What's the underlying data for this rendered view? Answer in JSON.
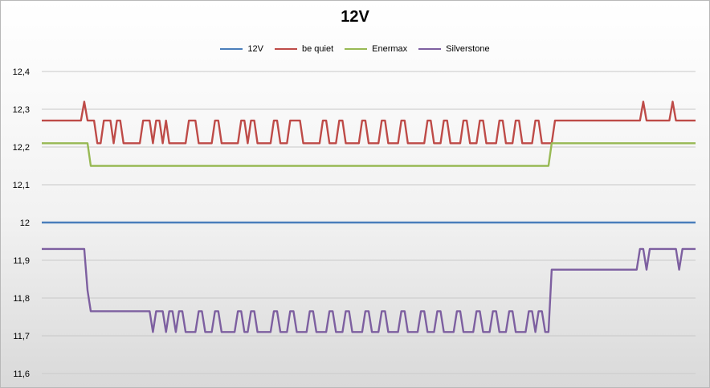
{
  "chart_data": {
    "type": "line",
    "title": "12V",
    "xlabel": "",
    "ylabel": "",
    "ylim": [
      11.6,
      12.4
    ],
    "yticks": [
      "12,4",
      "12,3",
      "12,2",
      "12,1",
      "12",
      "11,9",
      "11,8",
      "11,7",
      "11,6"
    ],
    "grid": true,
    "legend_position": "top",
    "x_points": 201,
    "series": [
      {
        "name": "12V",
        "color": "#4a7ebb",
        "segments": [
          [
            0,
            200,
            12.0
          ]
        ]
      },
      {
        "name": "be quiet",
        "color": "#be4b48",
        "base": 12.21,
        "segments": [
          [
            0,
            12,
            12.27
          ],
          [
            13,
            13,
            12.32
          ],
          [
            14,
            16,
            12.27
          ],
          [
            157,
            183,
            12.27
          ],
          [
            184,
            184,
            12.32
          ],
          [
            185,
            192,
            12.27
          ],
          [
            193,
            193,
            12.32
          ],
          [
            194,
            200,
            12.27
          ]
        ],
        "pulses": [
          [
            19,
            20
          ],
          [
            21,
            21
          ],
          [
            23,
            24
          ],
          [
            31,
            32
          ],
          [
            33,
            33
          ],
          [
            35,
            36
          ],
          [
            38,
            38
          ],
          [
            45,
            46
          ],
          [
            47,
            47
          ],
          [
            53,
            54
          ],
          [
            61,
            62
          ],
          [
            64,
            65
          ],
          [
            71,
            72
          ],
          [
            76,
            77
          ],
          [
            78,
            79
          ],
          [
            86,
            87
          ],
          [
            91,
            92
          ],
          [
            98,
            99
          ],
          [
            104,
            105
          ],
          [
            110,
            111
          ],
          [
            118,
            119
          ],
          [
            123,
            124
          ],
          [
            129,
            130
          ],
          [
            134,
            135
          ],
          [
            140,
            141
          ],
          [
            145,
            146
          ],
          [
            151,
            152
          ]
        ],
        "pulse_value": 12.27
      },
      {
        "name": "Enermax",
        "color": "#98b954",
        "segments": [
          [
            0,
            14,
            12.21
          ],
          [
            15,
            155,
            12.15
          ],
          [
            156,
            200,
            12.21
          ]
        ]
      },
      {
        "name": "Silverstone",
        "color": "#7d5fa0",
        "base": 11.71,
        "segments": [
          [
            0,
            13,
            11.93
          ],
          [
            14,
            14,
            11.82
          ],
          [
            15,
            30,
            11.765
          ],
          [
            155,
            155,
            11.71
          ],
          [
            156,
            181,
            11.875
          ],
          [
            182,
            200,
            11.875
          ]
        ],
        "pulses": [
          [
            31,
            33
          ],
          [
            35,
            37
          ],
          [
            39,
            40
          ],
          [
            42,
            43
          ],
          [
            48,
            49
          ],
          [
            53,
            54
          ],
          [
            60,
            61
          ],
          [
            64,
            65
          ],
          [
            71,
            72
          ],
          [
            76,
            77
          ],
          [
            82,
            83
          ],
          [
            88,
            89
          ],
          [
            93,
            94
          ],
          [
            99,
            100
          ],
          [
            104,
            105
          ],
          [
            110,
            111
          ],
          [
            116,
            117
          ],
          [
            121,
            122
          ],
          [
            127,
            128
          ],
          [
            133,
            134
          ],
          [
            138,
            139
          ],
          [
            143,
            144
          ],
          [
            149,
            150
          ],
          [
            152,
            153
          ]
        ],
        "pulse_value": 11.765,
        "noise": [
          [
            183,
            184
          ],
          [
            186,
            186
          ],
          [
            187,
            188
          ],
          [
            189,
            189
          ],
          [
            190,
            191
          ],
          [
            192,
            193
          ],
          [
            194,
            194
          ],
          [
            196,
            197
          ],
          [
            198,
            198
          ],
          [
            199,
            200
          ]
        ],
        "noise_value": 11.93
      }
    ]
  }
}
